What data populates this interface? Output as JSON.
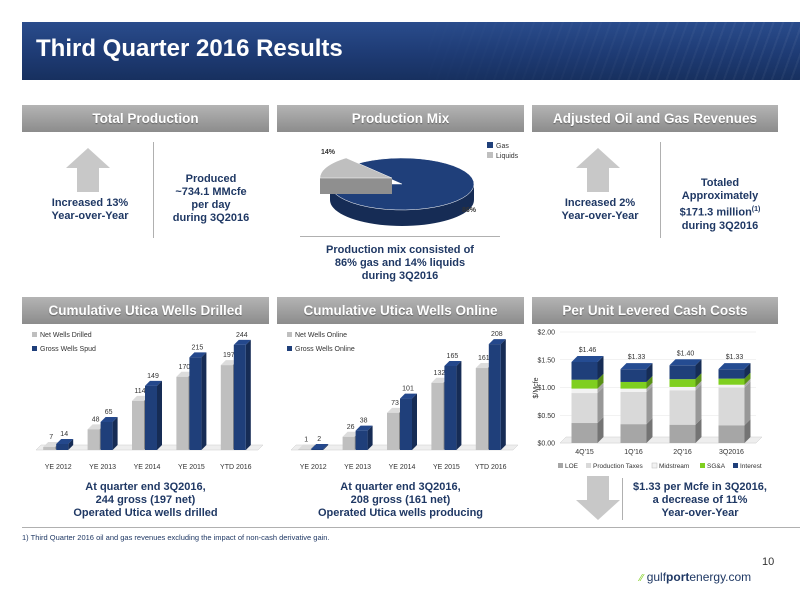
{
  "title": "Third Quarter 2016 Results",
  "sections": {
    "total_production": {
      "header": "Total Production",
      "increase": "Increased 13%\nYear-over-Year",
      "produced": "Produced\n~734.1 MMcfe\nper day\nduring 3Q2016"
    },
    "production_mix": {
      "header": "Production Mix",
      "caption": "Production mix consisted of\n86% gas and 14% liquids\nduring 3Q2016"
    },
    "adjusted_revenues": {
      "header": "Adjusted Oil and Gas Revenues",
      "increase": "Increased 2%\nYear-over-Year",
      "totaled_l1": "Totaled",
      "totaled_l2": "Approximately",
      "totaled_l3": "$171.3 million",
      "footnote_mark": "(1)",
      "totaled_l4": "during 3Q2016"
    },
    "utica_drilled": {
      "header": "Cumulative Utica Wells Drilled",
      "caption": "At quarter end 3Q2016,\n244 gross (197 net)\nOperated Utica wells drilled"
    },
    "utica_online": {
      "header": "Cumulative Utica Wells Online",
      "caption": "At quarter end 3Q2016,\n208 gross (161 net)\nOperated Utica wells producing"
    },
    "cash_costs": {
      "header": "Per Unit Levered Cash Costs",
      "caption": "$1.33 per Mcfe in 3Q2016,\na decrease of 11%\nYear-over-Year"
    }
  },
  "chart_data": [
    {
      "type": "pie",
      "labels": [
        "Gas",
        "Liquids"
      ],
      "values": [
        86,
        14
      ],
      "data_labels": [
        "86%",
        "14%"
      ],
      "colors": [
        "#1f3f7a",
        "#bfbfbf"
      ],
      "legend_position": "top-right"
    },
    {
      "type": "bar",
      "categories": [
        "YE 2012",
        "YE 2013",
        "YE 2014",
        "YE 2015",
        "YTD 2016"
      ],
      "series": [
        {
          "name": "Net Wells Drilled",
          "values": [
            7,
            48,
            114,
            170,
            197
          ],
          "color": "#bfbfbf"
        },
        {
          "name": "Gross Wells Spud",
          "values": [
            14,
            65,
            149,
            215,
            244
          ],
          "color": "#1f3f7a"
        }
      ],
      "ylim": [
        0,
        260
      ],
      "legend_position": "top-left"
    },
    {
      "type": "bar",
      "categories": [
        "YE 2012",
        "YE 2013",
        "YE 2014",
        "YE 2015",
        "YTD 2016"
      ],
      "series": [
        {
          "name": "Net Wells Online",
          "values": [
            1,
            26,
            73,
            132,
            161
          ],
          "color": "#bfbfbf"
        },
        {
          "name": "Gross Wells Online",
          "values": [
            2,
            38,
            101,
            165,
            208
          ],
          "color": "#1f3f7a"
        }
      ],
      "ylim": [
        0,
        220
      ],
      "legend_position": "top-left"
    },
    {
      "type": "bar",
      "stacked": true,
      "categories": [
        "4Q'15",
        "1Q'16",
        "2Q'16",
        "3Q2016"
      ],
      "series": [
        {
          "name": "LOE",
          "values": [
            0.36,
            0.34,
            0.33,
            0.32
          ],
          "color": "#a6a6a6"
        },
        {
          "name": "Production Taxes",
          "values": [
            0.54,
            0.58,
            0.62,
            0.68
          ],
          "color": "#d9d9d9"
        },
        {
          "name": "Midstream",
          "values": [
            0.08,
            0.06,
            0.06,
            0.05
          ],
          "color": "#f2f2f2"
        },
        {
          "name": "SG&A",
          "values": [
            0.16,
            0.12,
            0.14,
            0.11
          ],
          "color": "#7fcf1f"
        },
        {
          "name": "Interest",
          "values": [
            0.32,
            0.23,
            0.25,
            0.17
          ],
          "color": "#1f3f7a"
        }
      ],
      "totals": [
        "$1.46",
        "$1.33",
        "$1.40",
        "$1.33"
      ],
      "yticks": [
        "$0.00",
        "$0.50",
        "$1.00",
        "$1.50",
        "$2.00"
      ],
      "ylim": [
        0,
        2.0
      ],
      "ylabel": "$/Mcfe",
      "legend_position": "bottom"
    }
  ],
  "footnote": "1)    Third Quarter 2016 oil and gas revenues excluding the impact of non-cash derivative gain.",
  "page_number": "10",
  "logo": {
    "prefix": "gulf",
    "bold": "port",
    "suffix": "energy.com"
  }
}
